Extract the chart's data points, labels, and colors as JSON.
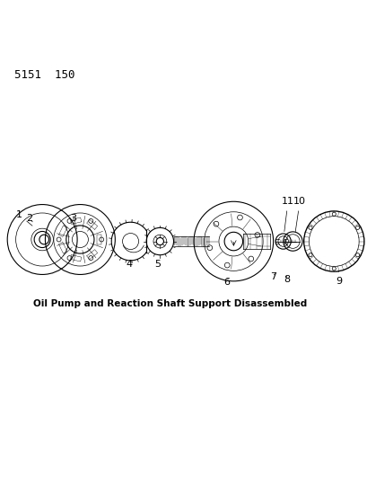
{
  "background_color": "#ffffff",
  "page_ref": "5151  150",
  "caption": "Oil Pump and Reaction Shaft Support Disassembled",
  "line_color": "#000000",
  "text_color": "#000000",
  "ref_fontsize": 9,
  "caption_fontsize": 7.5,
  "label_fontsize": 8
}
